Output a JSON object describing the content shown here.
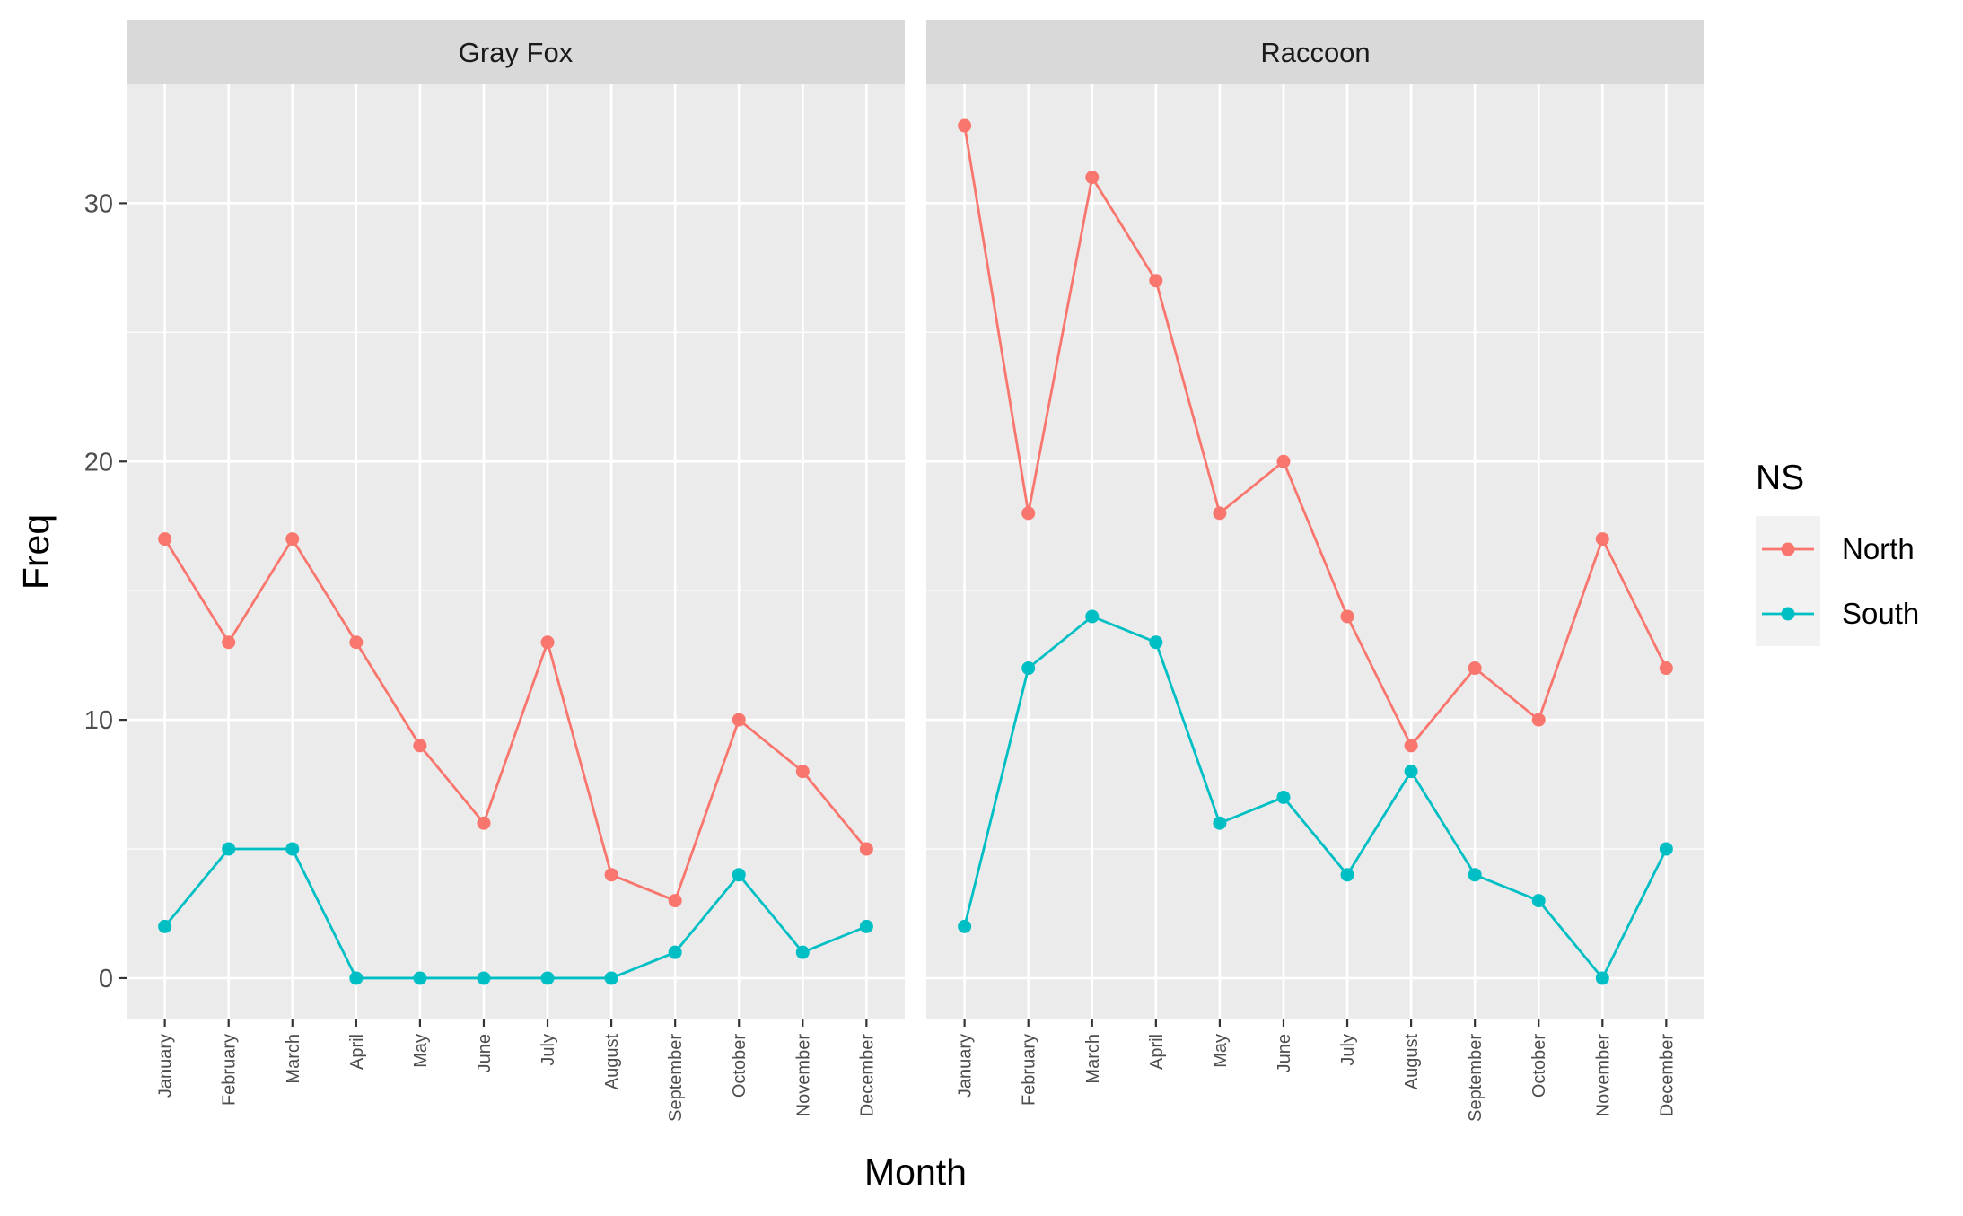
{
  "chart_data": {
    "type": "line",
    "xlabel": "Month",
    "ylabel": "Freq",
    "ylim": [
      -1.6,
      34.6
    ],
    "yticks": [
      0,
      10,
      20,
      30
    ],
    "grid": true,
    "legend": {
      "title": "NS",
      "placement": "right",
      "entries": [
        "North",
        "South"
      ]
    },
    "colors": {
      "North": "#F8766D",
      "South": "#00BFC4"
    },
    "categories": [
      "January",
      "February",
      "March",
      "April",
      "May",
      "June",
      "July",
      "August",
      "September",
      "October",
      "November",
      "December"
    ],
    "panels": [
      {
        "title": "Gray Fox",
        "series": [
          {
            "name": "North",
            "values": [
              17,
              13,
              17,
              13,
              9,
              6,
              13,
              4,
              3,
              10,
              8,
              5
            ]
          },
          {
            "name": "South",
            "values": [
              2,
              5,
              5,
              0,
              0,
              0,
              0,
              0,
              1,
              4,
              1,
              2
            ]
          }
        ]
      },
      {
        "title": "Raccoon",
        "series": [
          {
            "name": "North",
            "values": [
              33,
              18,
              31,
              27,
              18,
              20,
              14,
              9,
              12,
              10,
              17,
              12
            ]
          },
          {
            "name": "South",
            "values": [
              2,
              12,
              14,
              13,
              6,
              7,
              4,
              8,
              4,
              3,
              0,
              5
            ]
          }
        ]
      }
    ]
  }
}
